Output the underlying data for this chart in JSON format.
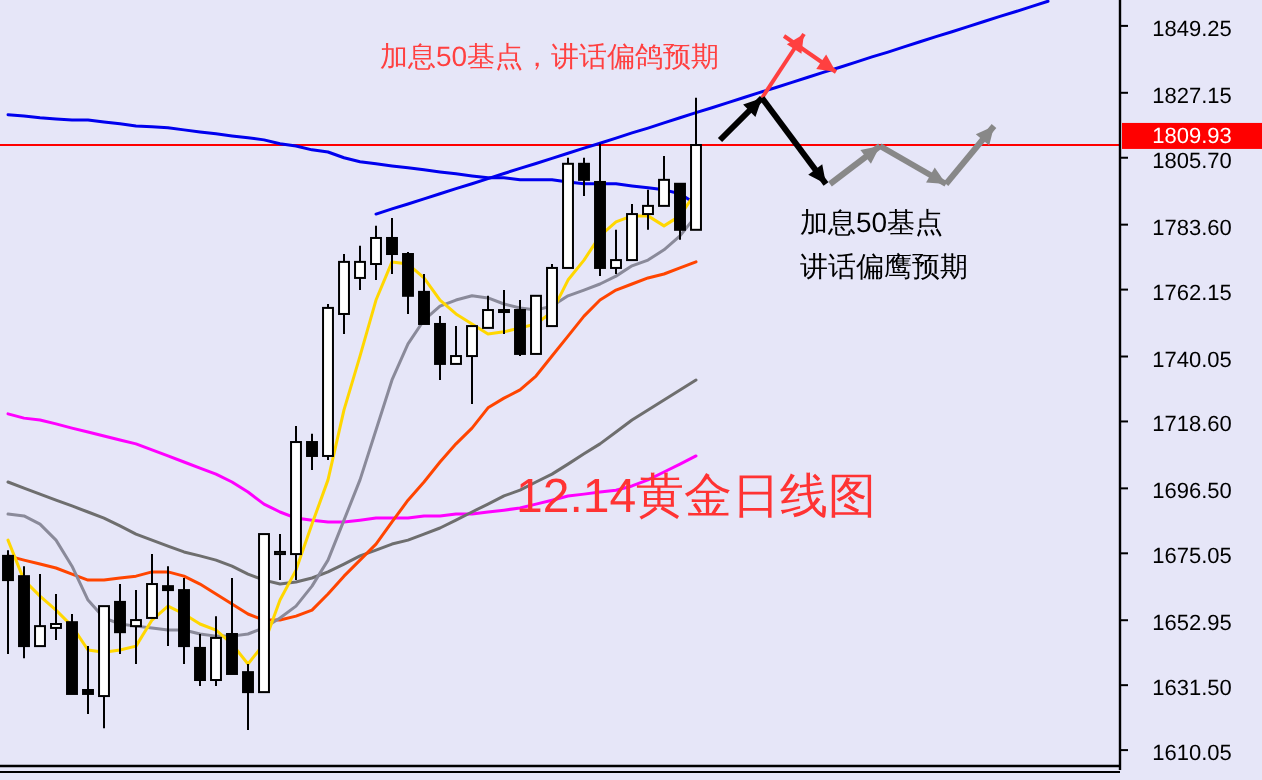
{
  "chart_data": {
    "type": "candlestick",
    "title": "12.14黄金日线图",
    "annotations": [
      "加息50基点，讲话偏鸽预期",
      "加息50基点",
      "讲话偏鹰预期"
    ],
    "categories": [
      null,
      null,
      null,
      null,
      null,
      null,
      null,
      null,
      null,
      null,
      null,
      null,
      null,
      null,
      null,
      null,
      null,
      null,
      null,
      null,
      null,
      null,
      null,
      null,
      null,
      null,
      null,
      null,
      null,
      null,
      null,
      null,
      null,
      null,
      null,
      null,
      null,
      null,
      null,
      null,
      null,
      null,
      null,
      null,
      null,
      null,
      null,
      null,
      null,
      null,
      null,
      null,
      null,
      null,
      null,
      null,
      null,
      null,
      null,
      null,
      null,
      null,
      null,
      null,
      null,
      null,
      null,
      null,
      null,
      null
    ],
    "ohlc": [
      [
        1674.2,
        1676.1,
        1641.8,
        1666.2
      ],
      [
        1667.5,
        1670.8,
        1640.4,
        1644.4
      ],
      [
        1644.4,
        1668.2,
        1644.4,
        1651.0
      ],
      [
        1650.4,
        1661.6,
        1646.4,
        1651.7
      ],
      [
        1652.3,
        1655.0,
        1628.6,
        1628.6
      ],
      [
        1629.9,
        1644.4,
        1622.0,
        1628.6
      ],
      [
        1627.9,
        1657.6,
        1617.3,
        1657.6
      ],
      [
        1659.0,
        1664.9,
        1641.8,
        1649.0
      ],
      [
        1651.0,
        1662.9,
        1638.5,
        1653.0
      ],
      [
        1653.7,
        1674.8,
        1653.7,
        1664.9
      ],
      [
        1664.2,
        1670.8,
        1644.4,
        1662.9
      ],
      [
        1662.9,
        1666.9,
        1638.5,
        1644.4
      ],
      [
        1643.8,
        1648.4,
        1631.2,
        1633.2
      ],
      [
        1633.2,
        1654.3,
        1631.2,
        1647.1
      ],
      [
        1648.4,
        1666.9,
        1635.2,
        1635.2
      ],
      [
        1635.8,
        1638.5,
        1616.7,
        1629.2
      ],
      [
        1629.2,
        1681.4,
        1629.2,
        1681.4
      ],
      [
        1674.8,
        1681.4,
        1666.2,
        1675.5
      ],
      [
        1674.8,
        1717.1,
        1666.2,
        1711.8
      ],
      [
        1711.8,
        1714.5,
        1702.6,
        1707.2
      ],
      [
        1707.2,
        1757.4,
        1705.9,
        1756.1
      ],
      [
        1754.1,
        1773.9,
        1747.5,
        1771.3
      ],
      [
        1766.0,
        1776.6,
        1762.0,
        1771.3
      ],
      [
        1770.6,
        1783.2,
        1765.3,
        1779.2
      ],
      [
        1779.2,
        1785.8,
        1767.3,
        1773.9
      ],
      [
        1773.9,
        1774.6,
        1754.1,
        1760.1
      ],
      [
        1761.4,
        1767.3,
        1750.8,
        1750.8
      ],
      [
        1750.8,
        1753.4,
        1732.3,
        1737.6
      ],
      [
        1737.6,
        1750.1,
        1737.6,
        1740.2
      ],
      [
        1740.2,
        1750.1,
        1724.4,
        1750.1
      ],
      [
        1749.5,
        1760.1,
        1749.5,
        1755.4
      ],
      [
        1755.4,
        1762.0,
        1747.5,
        1755.4
      ],
      [
        1755.4,
        1758.7,
        1740.2,
        1740.9
      ],
      [
        1740.9,
        1760.1,
        1740.9,
        1760.1
      ],
      [
        1750.1,
        1770.6,
        1750.1,
        1769.3
      ],
      [
        1769.3,
        1805.7,
        1769.3,
        1803.7
      ],
      [
        1803.7,
        1805.7,
        1793.1,
        1798.4
      ],
      [
        1797.7,
        1810.3,
        1766.6,
        1769.3
      ],
      [
        1769.3,
        1781.9,
        1767.3,
        1771.9
      ],
      [
        1771.9,
        1790.4,
        1771.9,
        1787.1
      ],
      [
        1787.1,
        1795.1,
        1781.9,
        1789.8
      ],
      [
        1789.8,
        1806.3,
        1789.8,
        1798.4
      ],
      [
        1797.1,
        1797.1,
        1778.6,
        1781.9
      ],
      [
        1781.9,
        1825.5,
        1781.9,
        1809.9
      ],
      null,
      null,
      null,
      null,
      null,
      null,
      null,
      null,
      null,
      null,
      null,
      null,
      null,
      null,
      null,
      null,
      null,
      null,
      null,
      null,
      null,
      null,
      null,
      null,
      null,
      null
    ],
    "series": [
      {
        "type": "line",
        "color": "#0000ee",
        "values": [
          1819.9,
          1819.5,
          1818.9,
          1818.5,
          1818.2,
          1818.2,
          1817.5,
          1816.9,
          1816.2,
          1815.9,
          1815.6,
          1814.9,
          1814.2,
          1813.6,
          1812.9,
          1812.3,
          1811.6,
          1810.3,
          1809.6,
          1808.3,
          1807.6,
          1805.7,
          1804.4,
          1803.7,
          1803.0,
          1802.4,
          1801.7,
          1801.0,
          1800.4,
          1799.7,
          1799.1,
          1799.1,
          1798.4,
          1798.4,
          1798.4,
          1797.7,
          1797.1,
          1797.1,
          1797.1,
          1796.4,
          1795.8,
          1795.1,
          1793.8,
          1790.4,
          null,
          null,
          null,
          null,
          null,
          null,
          null,
          null,
          null,
          null,
          null,
          null,
          null,
          null,
          null,
          null,
          null,
          null,
          null,
          null,
          null,
          null,
          null,
          null,
          null,
          null
        ]
      },
      {
        "type": "line",
        "color": "#0000ee",
        "values": [
          null,
          null,
          null,
          null,
          null,
          null,
          null,
          null,
          null,
          null,
          null,
          null,
          null,
          null,
          null,
          null,
          null,
          null,
          null,
          null,
          null,
          null,
          null,
          1787.1,
          1788.8,
          1790.4,
          1792.1,
          1793.8,
          1795.5,
          1797.1,
          1798.8,
          1800.5,
          1802.2,
          1803.8,
          1805.5,
          1807.2,
          1808.9,
          1810.5,
          1812.2,
          1813.9,
          1815.5,
          1817.2,
          1818.9,
          1820.6,
          1822.2,
          1823.9,
          1825.6,
          1827.3,
          1828.9,
          1830.6,
          1832.3,
          1834.0,
          1835.6,
          1837.3,
          1839.0,
          1840.6,
          1842.3,
          1844.0,
          1845.7,
          1847.3,
          1849.0,
          1850.7,
          1852.4,
          1854.0,
          1855.7,
          1857.4,
          null,
          null,
          null,
          null
        ]
      },
      {
        "type": "line",
        "color": "#ff00ff",
        "values": [
          1721.1,
          1719.7,
          1719.1,
          1717.8,
          1716.4,
          1715.1,
          1713.8,
          1712.5,
          1711.2,
          1709.2,
          1707.2,
          1705.2,
          1703.2,
          1701.2,
          1698.6,
          1695.3,
          1691.3,
          1688.7,
          1686.7,
          1686.0,
          1685.4,
          1685.4,
          1686.0,
          1686.7,
          1686.7,
          1686.7,
          1687.4,
          1687.4,
          1688.0,
          1688.0,
          1688.7,
          1689.3,
          1690.0,
          1691.3,
          1692.6,
          1694.0,
          1694.6,
          1695.3,
          1695.9,
          1697.3,
          1699.3,
          1701.9,
          1704.5,
          1707.2,
          null,
          null,
          null,
          null,
          null,
          null,
          null,
          null,
          null,
          null,
          null,
          null,
          null,
          null,
          null,
          null,
          null,
          null,
          null,
          null,
          null,
          null,
          null,
          null,
          null,
          null
        ]
      },
      {
        "type": "line",
        "color": "#6e6e6e",
        "values": [
          1698.6,
          1696.6,
          1694.6,
          1692.6,
          1690.7,
          1688.7,
          1686.7,
          1684.1,
          1681.4,
          1679.4,
          1677.4,
          1675.5,
          1674.2,
          1672.8,
          1670.8,
          1668.2,
          1666.2,
          1664.9,
          1665.6,
          1666.9,
          1668.9,
          1671.5,
          1674.2,
          1676.1,
          1678.1,
          1679.4,
          1681.4,
          1683.4,
          1686.0,
          1688.7,
          1691.3,
          1694.0,
          1695.9,
          1698.6,
          1701.2,
          1704.5,
          1707.9,
          1711.2,
          1715.1,
          1719.1,
          1722.4,
          1725.7,
          1729.0,
          1732.3,
          null,
          null,
          null,
          null,
          null,
          null,
          null,
          null,
          null,
          null,
          null,
          null,
          null,
          null,
          null,
          null,
          null,
          null,
          null,
          null,
          null,
          null,
          null,
          null,
          null,
          null
        ]
      },
      {
        "type": "line",
        "color": "#ff4500",
        "values": [
          1674.2,
          1672.8,
          1671.5,
          1670.2,
          1668.2,
          1666.2,
          1666.2,
          1666.9,
          1667.5,
          1668.9,
          1668.9,
          1667.5,
          1664.9,
          1661.6,
          1658.3,
          1655.0,
          1653.0,
          1653.0,
          1654.3,
          1656.3,
          1661.6,
          1667.5,
          1672.8,
          1678.1,
          1685.4,
          1692.6,
          1698.6,
          1705.2,
          1711.2,
          1716.4,
          1723.1,
          1726.3,
          1729.0,
          1733.6,
          1740.2,
          1746.8,
          1753.4,
          1758.7,
          1762.0,
          1764.0,
          1766.0,
          1767.3,
          1769.3,
          1771.3,
          null,
          null,
          null,
          null,
          null,
          null,
          null,
          null,
          null,
          null,
          null,
          null,
          null,
          null,
          null,
          null,
          null,
          null,
          null,
          null,
          null,
          null,
          null,
          null,
          null,
          null
        ]
      },
      {
        "type": "line",
        "color": "#8a8a9a",
        "values": [
          1688.0,
          1687.4,
          1684.7,
          1679.4,
          1670.8,
          1659.6,
          1653.7,
          1651.7,
          1651.0,
          1650.4,
          1649.7,
          1649.7,
          1648.4,
          1647.7,
          1647.7,
          1648.4,
          1650.4,
          1653.7,
          1657.6,
          1664.2,
          1672.8,
          1686.0,
          1699.3,
          1715.8,
          1732.3,
          1744.2,
          1752.1,
          1756.7,
          1758.7,
          1760.1,
          1759.4,
          1757.4,
          1756.1,
          1755.4,
          1756.7,
          1760.1,
          1762.0,
          1764.0,
          1766.6,
          1770.0,
          1771.9,
          1775.3,
          1779.9,
          1786.5,
          null,
          null,
          null,
          null,
          null,
          null,
          null,
          null,
          null,
          null,
          null,
          null,
          null,
          null,
          null,
          null,
          null,
          null,
          null,
          null,
          null,
          null,
          null,
          null,
          null,
          null
        ]
      },
      {
        "type": "line",
        "color": "#ffd700",
        "values": [
          1679.4,
          1666.2,
          1660.9,
          1656.3,
          1651.0,
          1643.1,
          1642.4,
          1643.1,
          1644.4,
          1653.0,
          1657.6,
          1655.0,
          1651.7,
          1649.7,
          1645.1,
          1638.5,
          1645.1,
          1659.6,
          1669.5,
          1684.7,
          1699.3,
          1722.4,
          1740.2,
          1758.7,
          1771.3,
          1770.6,
          1766.0,
          1758.7,
          1754.1,
          1750.8,
          1747.5,
          1748.2,
          1749.5,
          1750.8,
          1754.8,
          1765.3,
          1771.9,
          1779.9,
          1784.5,
          1786.5,
          1786.5,
          1783.2,
          1786.5,
          1794.4,
          null,
          null,
          null,
          null,
          null,
          null,
          null,
          null,
          null,
          null,
          null,
          null,
          null,
          null,
          null,
          null,
          null,
          null,
          null,
          null,
          null,
          null,
          null,
          null,
          null,
          null
        ]
      }
    ],
    "ylim": [
      1604.8,
      1857.8
    ],
    "yticks": [
      1849.25,
      1827.15,
      {
        "value": 1805.7,
        "label": "1805.70"
      },
      {
        "value": 1783.6,
        "label": "1783.60"
      },
      1762.15,
      1740.05,
      {
        "value": 1718.6,
        "label": "1718.60"
      },
      {
        "value": 1696.5,
        "label": "1696.50"
      },
      1675.05,
      1652.95,
      {
        "value": 1631.5,
        "label": "1631.50"
      },
      1610.05
    ],
    "ref_lines": [
      {
        "axis": "y",
        "value": 1809.93,
        "label": "1809.93",
        "color": "#ff0000"
      }
    ],
    "tick_labels": "y"
  }
}
